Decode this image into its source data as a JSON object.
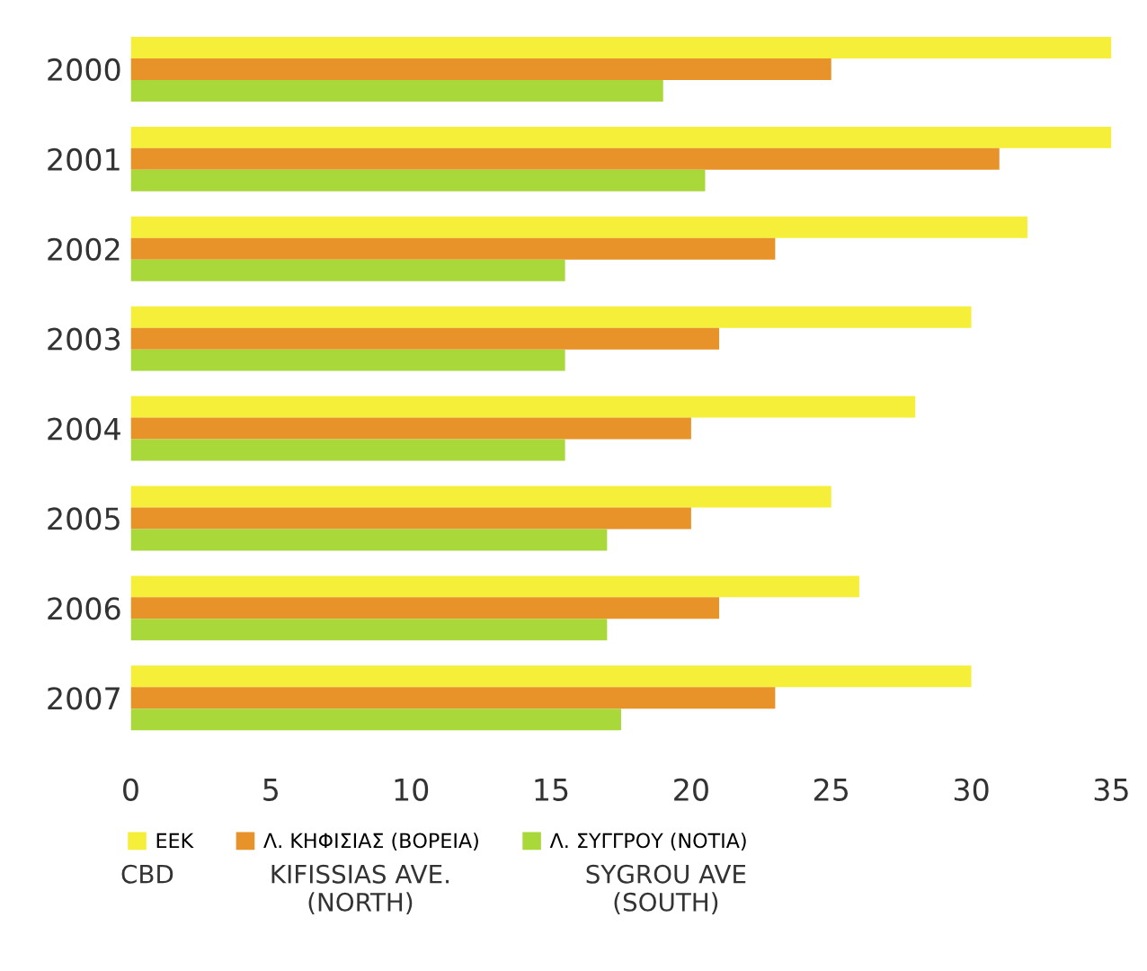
{
  "chart_data": {
    "type": "bar",
    "orientation": "horizontal",
    "categories": [
      "2000",
      "2001",
      "2002",
      "2003",
      "2004",
      "2005",
      "2006",
      "2007"
    ],
    "series": [
      {
        "name": "ΕΕΚ",
        "color": "#f5ef3a",
        "values": [
          35,
          35,
          32,
          30,
          28,
          25,
          26,
          30
        ]
      },
      {
        "name": "Λ. ΚΗΦΙΣΙΑΣ (ΒΟΡΕΙΑ)",
        "color": "#e8922a",
        "values": [
          25,
          31,
          23,
          21,
          20,
          20,
          21,
          23
        ]
      },
      {
        "name": "Λ. ΣΥΓΓΡΟΥ (ΝΟΤΙΑ)",
        "color": "#a8d83a",
        "values": [
          19,
          20.5,
          15.5,
          15.5,
          15.5,
          17,
          17,
          17.5
        ]
      }
    ],
    "xlim": [
      0,
      35
    ],
    "xticks": [
      0,
      5,
      10,
      15,
      20,
      25,
      30,
      35
    ],
    "grid": false,
    "legend": "bottom",
    "annotations": [
      "CBD",
      "KIFISSIAS AVE.\n(NORTH)",
      "SYGROU AVE\n(SOUTH)"
    ]
  }
}
